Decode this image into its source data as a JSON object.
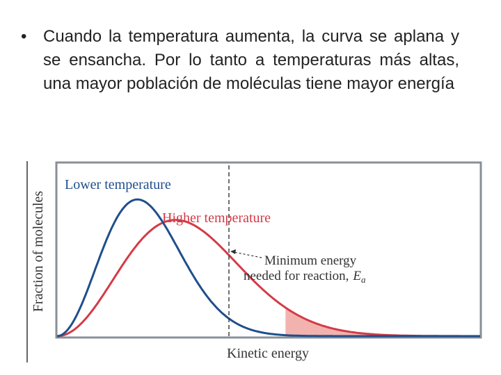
{
  "slide": {
    "bullet_marker": "•",
    "bullet_text": "Cuando la temperatura aumenta, la curva se aplana y se ensancha. Por lo tanto a temperaturas más altas, una mayor población de moléculas tiene mayor energía"
  },
  "chart_data": {
    "type": "line",
    "title": "",
    "xlabel": "Kinetic energy",
    "ylabel": "Fraction of molecules",
    "grid": false,
    "series": [
      {
        "name": "Lower temperature",
        "color": "#1f4e8c",
        "peak_x": 0.19,
        "peak_y": 0.8
      },
      {
        "name": "Higher temperature",
        "color": "#d43a46",
        "peak_x": 0.28,
        "peak_y": 0.68
      }
    ],
    "annotation": {
      "line1": "Minimum energy",
      "line2": "needed for reaction,",
      "symbol": "E",
      "subscript": "a",
      "threshold_x": 0.54
    },
    "colors": {
      "lower": "#1f4e8c",
      "higher": "#d43a46",
      "lower_fill": "#7f9fcf",
      "higher_fill": "#f2b3ae",
      "frame": "#8a8f97"
    }
  }
}
